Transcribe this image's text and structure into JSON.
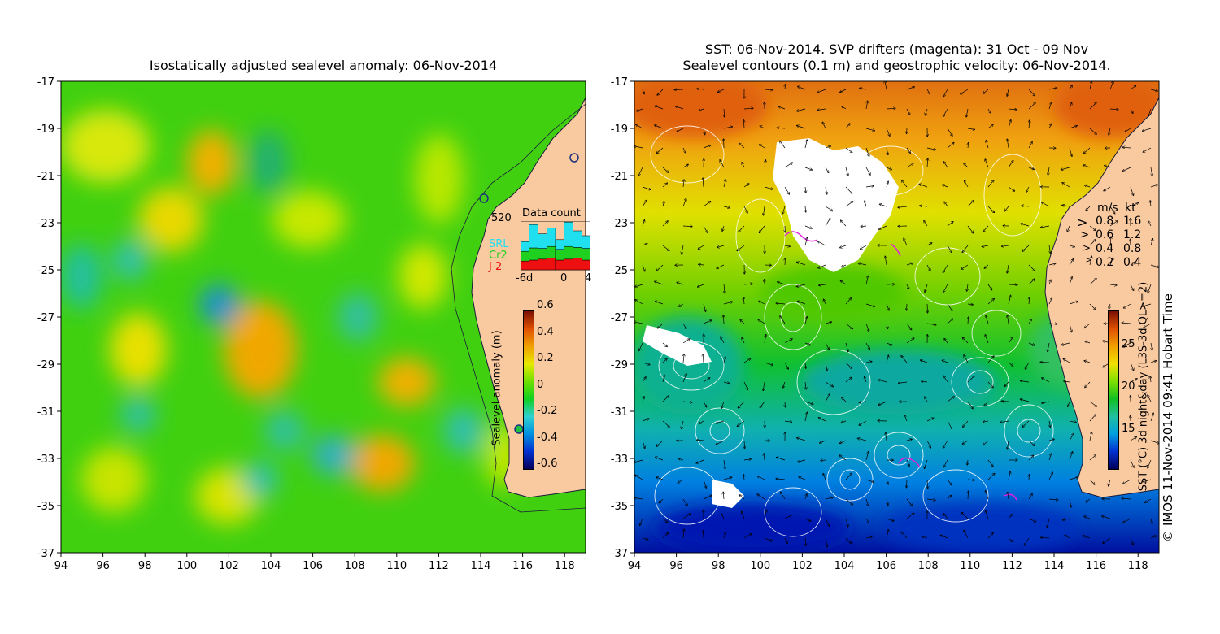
{
  "left_panel": {
    "title": "Isostatically adjusted sealevel anomaly: 06-Nov-2014",
    "colorbar": {
      "label": "Sealevel anomaly (m)",
      "ticks": [
        "0.6",
        "0.4",
        "0.2",
        "0",
        "-0.2",
        "-0.4",
        "-0.6"
      ],
      "colors": [
        "#05005a",
        "#0030d0",
        "#0090e0",
        "#30d0d0",
        "#10d020",
        "#70e000",
        "#e8e800",
        "#f0a000",
        "#e05000",
        "#7a1000"
      ]
    },
    "data_count": {
      "title": "Data count",
      "max_label": "520",
      "series": [
        {
          "name": "SRL",
          "color": "#20e0f0"
        },
        {
          "name": "Cr2",
          "color": "#20d020"
        },
        {
          "name": "J-2",
          "color": "#ee1010"
        }
      ],
      "x_ticks": [
        "-6d",
        "0",
        "4"
      ],
      "bars": [
        {
          "j2": 0.18,
          "cr2": 0.2,
          "srl": 0.2
        },
        {
          "j2": 0.2,
          "cr2": 0.25,
          "srl": 0.48
        },
        {
          "j2": 0.22,
          "cr2": 0.22,
          "srl": 0.3
        },
        {
          "j2": 0.24,
          "cr2": 0.24,
          "srl": 0.38
        },
        {
          "j2": 0.2,
          "cr2": 0.22,
          "srl": 0.2
        },
        {
          "j2": 0.22,
          "cr2": 0.26,
          "srl": 0.5
        },
        {
          "j2": 0.24,
          "cr2": 0.22,
          "srl": 0.34
        },
        {
          "j2": 0.2,
          "cr2": 0.24,
          "srl": 0.26
        }
      ]
    }
  },
  "right_panel": {
    "title_line1": "SST: 06-Nov-2014. SVP drifters (magenta): 31 Oct - 09 Nov",
    "title_line2": "Sealevel contours (0.1 m) and geostrophic velocity: 06-Nov-2014.",
    "speed_legend": {
      "header_ms": "m/s",
      "header_kt": "kt",
      "rows": [
        {
          "ms": "0.8",
          "kt": "1.6",
          "frac": 1.0
        },
        {
          "ms": "0.6",
          "kt": "1.2",
          "frac": 0.75
        },
        {
          "ms": "0.4",
          "kt": "0.8",
          "frac": 0.5
        },
        {
          "ms": "0.2",
          "kt": "0.4",
          "frac": 0.25
        }
      ]
    },
    "colorbar": {
      "label": "SST (°C) 3d night&day (L3S-3d QL>=2)",
      "ticks": [
        "25",
        "20",
        "15"
      ],
      "colors": [
        "#00005a",
        "#0030d0",
        "#00a0e0",
        "#20c0a0",
        "#10c020",
        "#80e000",
        "#f0e000",
        "#f0a000",
        "#e05000",
        "#7a1000"
      ]
    },
    "credit": "© IMOS 11-Nov-2014 09:41 Hobart Time"
  },
  "axes": {
    "y_ticks": [
      "-17",
      "-19",
      "-21",
      "-23",
      "-25",
      "-27",
      "-29",
      "-31",
      "-33",
      "-35",
      "-37"
    ],
    "x_ticks": [
      "94",
      "96",
      "98",
      "100",
      "102",
      "104",
      "106",
      "108",
      "110",
      "112",
      "114",
      "116",
      "118"
    ]
  },
  "colors": {
    "land": "#f9c9a0",
    "coast": "#1a1a3a"
  }
}
